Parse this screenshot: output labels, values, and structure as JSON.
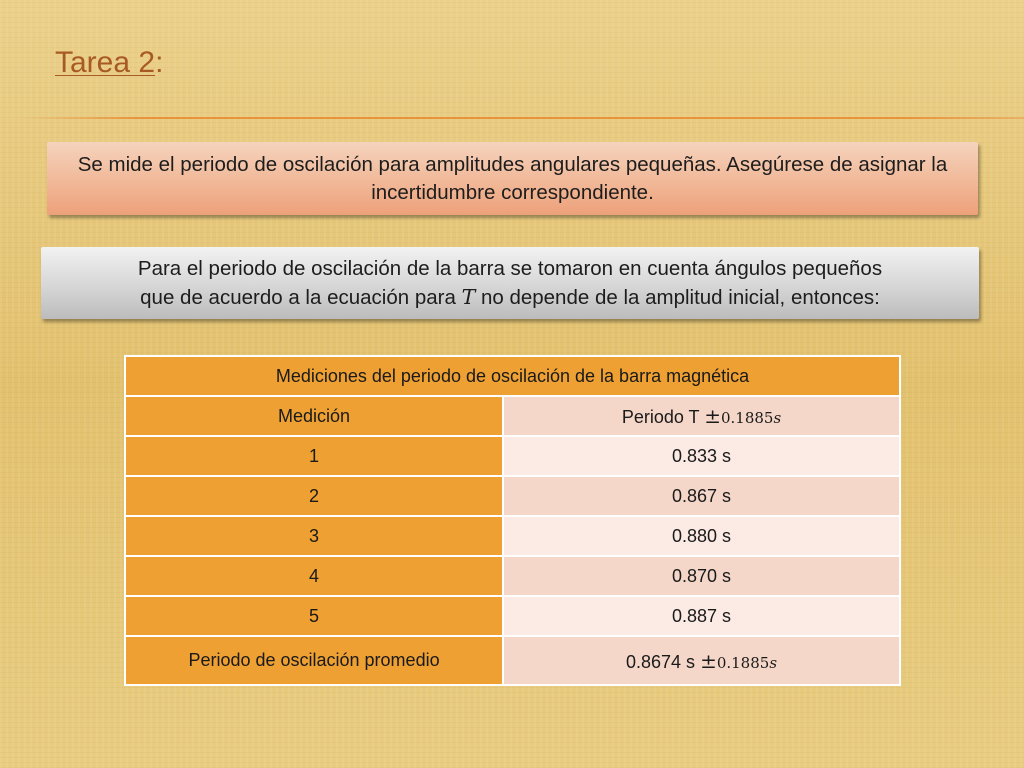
{
  "slide": {
    "title_link": "Tarea 2",
    "title_suffix": ":"
  },
  "callout_1": {
    "text": "Se mide el periodo de oscilación para amplitudes angulares pequeñas. Asegúrese de asignar la incertidumbre correspondiente."
  },
  "callout_2": {
    "line1": "Para el periodo de oscilación de la barra se tomaron en cuenta ángulos pequeños",
    "line2_before": "que de acuerdo a la ecuación para ",
    "line2_var": "T",
    "line2_after": " no depende  de la amplitud inicial, entonces:"
  },
  "table": {
    "title": "Mediciones del periodo de oscilación de la barra magnética",
    "col_headers": {
      "measurement": "Medición",
      "period_prefix": "Periodo T ",
      "period_pm": "±",
      "period_unc": "0.1885",
      "period_unit": "s"
    },
    "rows": [
      {
        "n": "1",
        "value": "0.833 s"
      },
      {
        "n": "2",
        "value": "0.867 s"
      },
      {
        "n": "3",
        "value": "0.880 s"
      },
      {
        "n": "4",
        "value": "0.870 s"
      },
      {
        "n": "5",
        "value": "0.887 s"
      }
    ],
    "average": {
      "label": "Periodo de oscilación promedio",
      "value_prefix": "0.8674 s ",
      "pm": "±",
      "unc": "0.1885",
      "unit": "s"
    }
  },
  "colors": {
    "accent_orange": "#eea032",
    "title_brown": "#a85a25",
    "cell_light": "#f5d7c9",
    "cell_pale": "#fbebe4"
  }
}
